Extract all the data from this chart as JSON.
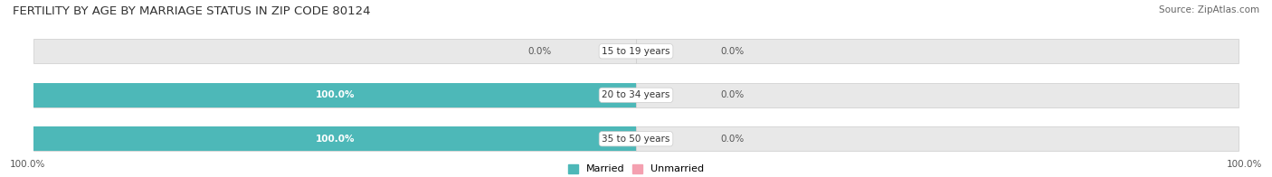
{
  "title": "FERTILITY BY AGE BY MARRIAGE STATUS IN ZIP CODE 80124",
  "source": "Source: ZipAtlas.com",
  "categories": [
    "15 to 19 years",
    "20 to 34 years",
    "35 to 50 years"
  ],
  "married": [
    0.0,
    100.0,
    100.0
  ],
  "unmarried": [
    0.0,
    0.0,
    0.0
  ],
  "married_color": "#4db8b8",
  "unmarried_color": "#f4a0b0",
  "bar_bg_color": "#e8e8e8",
  "bar_border_color": "#cccccc",
  "title_fontsize": 9.5,
  "label_fontsize": 8,
  "source_fontsize": 7.5,
  "max_val": 100.0,
  "figsize": [
    14.06,
    1.96
  ],
  "dpi": 100
}
